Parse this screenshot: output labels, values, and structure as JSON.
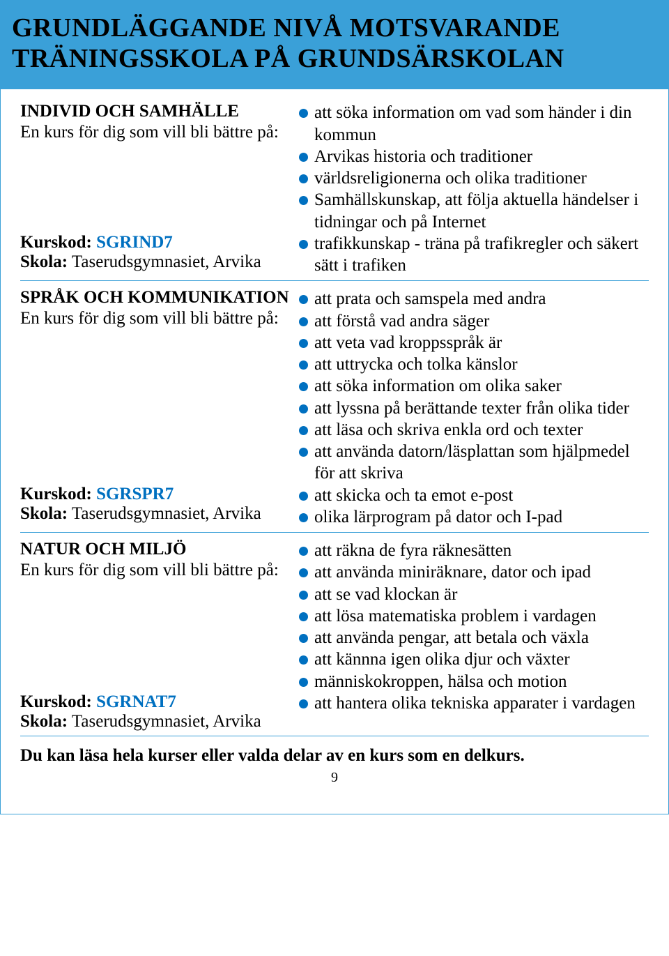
{
  "title_line1": "GRUNDLÄGGANDE NIVÅ MOTSVARANDE",
  "title_line2": "TRÄNINGSSKOLA PÅ GRUNDSÄRSKOLAN",
  "sections": [
    {
      "heading": "INDIVID OCH SAMHÄLLE",
      "intro": "En kurs för dig som vill bli bättre på:",
      "course_label": "Kurskod: ",
      "course_code": "SGRIND7",
      "school_label": "Skola:",
      "school_name": " Taserudsgymnasiet, Arvika",
      "bullets_top": [
        "att söka information om vad som händer i din kommun",
        "Arvikas historia och traditioner",
        "världsreligionerna och olika traditioner",
        "Samhällskunskap, att följa aktuella händelser i tidningar och på Internet"
      ],
      "bullets_bottom": [
        "trafikkunskap - träna på trafikregler och säkert sätt i trafiken"
      ]
    },
    {
      "heading": "SPRÅK OCH KOMMUNIKATION",
      "intro": "En kurs för dig som vill bli bättre på:",
      "course_label": "Kurskod: ",
      "course_code": "SGRSPR7",
      "school_label": "Skola:",
      "school_name": " Taserudsgymnasiet, Arvika",
      "bullets_top": [
        "att prata och samspela med andra",
        "att förstå vad andra säger",
        "att veta vad kroppsspråk är",
        "att uttrycka och tolka känslor",
        "att söka information om olika saker",
        "att lyssna på berättande texter från olika tider",
        "att läsa och skriva enkla ord och texter",
        "att använda datorn/läsplattan som hjälpmedel för att skriva"
      ],
      "bullets_bottom": [
        "att skicka och ta emot e-post",
        "olika lärprogram på dator och I-pad"
      ]
    },
    {
      "heading": "NATUR OCH MILJÖ",
      "intro": "En kurs för dig som vill bli bättre på:",
      "course_label": "Kurskod: ",
      "course_code": "SGRNAT7",
      "school_label": "Skola:",
      "school_name": " Taserudsgymnasiet, Arvika",
      "bullets_top": [
        "att räkna de fyra räknesätten",
        "att använda miniräknare, dator och ipad",
        "att se vad klockan är",
        "att lösa matematiska problem i vardagen",
        "att använda pengar, att betala och växla",
        "att kännna igen olika djur och växter",
        "människokroppen, hälsa och motion"
      ],
      "bullets_bottom": [
        "att hantera olika tekniska apparater i vardagen"
      ]
    }
  ],
  "footer_note": "Du kan läsa hela kurser eller valda delar av en kurs som en delkurs.",
  "page_number": "9"
}
